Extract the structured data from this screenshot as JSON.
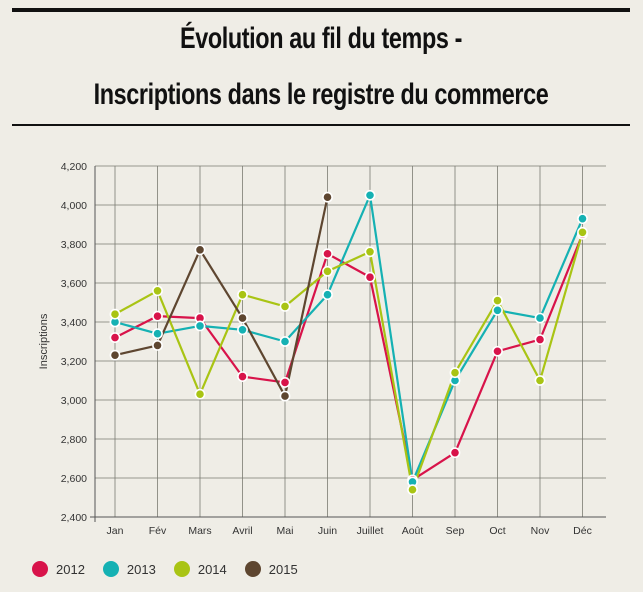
{
  "header": {
    "title_line1": "Évolution au fil du temps  -",
    "title_line2": "Inscriptions dans le registre du commerce"
  },
  "chart_data": {
    "type": "line",
    "title": "Évolution au fil du temps - Inscriptions dans le registre du commerce",
    "xlabel": "",
    "ylabel": "Inscriptions",
    "categories": [
      "Jan",
      "Fév",
      "Mars",
      "Avril",
      "Mai",
      "Juin",
      "Juillet",
      "Août",
      "Sep",
      "Oct",
      "Nov",
      "Déc"
    ],
    "ylim": [
      2400,
      4200
    ],
    "yticks": [
      "2,400",
      "2,600",
      "2,800",
      "3,000",
      "3,200",
      "3,400",
      "3,600",
      "3,800",
      "4,000",
      "4,200"
    ],
    "grid": true,
    "legend_position": "bottom-left",
    "series": [
      {
        "name": "2012",
        "color": "#d8134a",
        "values": [
          3320,
          3430,
          3420,
          3120,
          3090,
          3750,
          3630,
          2590,
          2730,
          3250,
          3310,
          3850
        ]
      },
      {
        "name": "2013",
        "color": "#15b1b3",
        "values": [
          3400,
          3340,
          3380,
          3360,
          3300,
          3540,
          4050,
          2580,
          3100,
          3460,
          3420,
          3930
        ]
      },
      {
        "name": "2014",
        "color": "#a9c414",
        "values": [
          3440,
          3560,
          3030,
          3540,
          3480,
          3660,
          3760,
          2540,
          3140,
          3510,
          3100,
          3860
        ]
      },
      {
        "name": "2015",
        "color": "#5e4630",
        "values": [
          3230,
          3280,
          3770,
          3420,
          3020,
          4040,
          null,
          null,
          null,
          null,
          null,
          null
        ]
      }
    ]
  }
}
